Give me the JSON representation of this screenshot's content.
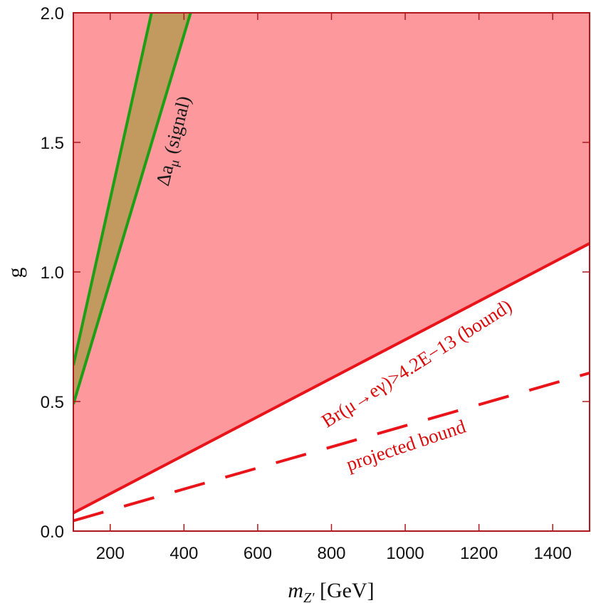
{
  "chart_data": {
    "type": "area",
    "xlabel_main": "m",
    "xlabel_sub": "Z'",
    "xlabel_unit": " [GeV]",
    "ylabel": "g",
    "xlim": [
      100,
      1500
    ],
    "ylim": [
      0,
      2
    ],
    "xticks": [
      200,
      400,
      600,
      800,
      1000,
      1200,
      1400
    ],
    "yticks": [
      0.0,
      0.5,
      1.0,
      1.5,
      2.0
    ],
    "ytick_labels": [
      "0.0",
      "0.5",
      "1.0",
      "1.5",
      "2.0"
    ],
    "grid": false,
    "regions": {
      "excluded_bound": {
        "boundary": [
          [
            100,
            0.07
          ],
          [
            1500,
            1.11
          ]
        ],
        "color": "#fd989c",
        "edge_color": "#e8141a"
      },
      "signal_band": {
        "lower_edge": [
          [
            100,
            0.49
          ],
          [
            418,
            2.0
          ]
        ],
        "upper_edge": [
          [
            100,
            0.64
          ],
          [
            312,
            2.0
          ]
        ],
        "fill_color": "#c29a5f",
        "edge_color": "#1c9e15"
      },
      "projected": {
        "line": [
          [
            100,
            0.04
          ],
          [
            1500,
            0.61
          ]
        ],
        "style": "dashed",
        "color": "#e8141a"
      }
    },
    "annotations": {
      "signal": {
        "prefix": "Δa",
        "sub": "μ",
        "suffix": " (signal)"
      },
      "bound": "Br(μ→eγ)>4.2E−13 (bound)",
      "projected": "projected bound"
    }
  }
}
